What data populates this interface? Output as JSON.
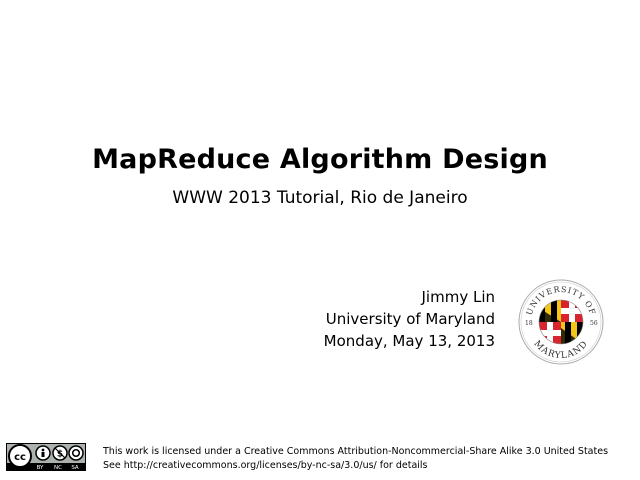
{
  "slide": {
    "title": "MapReduce Algorithm Design",
    "subtitle": "WWW 2013 Tutorial, Rio de Janeiro",
    "author": "Jimmy Lin",
    "affiliation": "University of Maryland",
    "date": "Monday, May 13, 2013"
  },
  "logo": {
    "text_top": "UNIVERSITY OF",
    "text_bottom": "MARYLAND",
    "year_left": "18",
    "year_right": "56",
    "colors": {
      "red": "#d9232e",
      "gold": "#f5c518",
      "black": "#000000"
    }
  },
  "license": {
    "badge_labels": [
      "BY",
      "NC",
      "SA"
    ],
    "line1": "This work is licensed under a Creative Commons Attribution-Noncommercial-Share Alike 3.0 United States",
    "line2": "See http://creativecommons.org/licenses/by-nc-sa/3.0/us/ for details"
  }
}
